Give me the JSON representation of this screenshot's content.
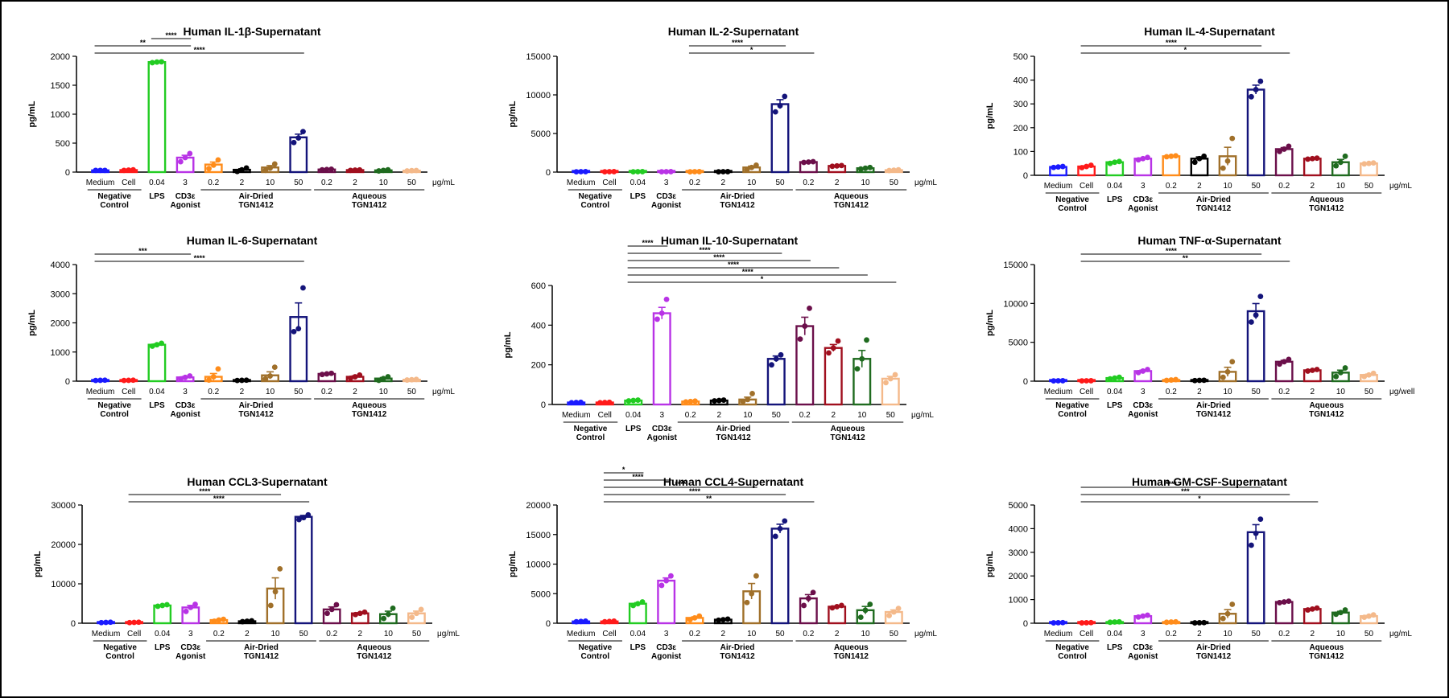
{
  "chart_data": [
    {
      "type": "bar",
      "title": "Human IL-1β-Supernatant",
      "ylabel": "pg/mL",
      "unit": "μg/mL",
      "ylim": [
        0,
        2000
      ],
      "yticks": [
        0,
        500,
        1000,
        1500,
        2000
      ],
      "yticklabels": [
        "0",
        "500",
        "1000",
        "1500",
        "2000"
      ],
      "values": [
        30,
        35,
        1900,
        250,
        130,
        40,
        80,
        600,
        45,
        35,
        30,
        25
      ],
      "points": [
        [
          30,
          30,
          30
        ],
        [
          30,
          35,
          40
        ],
        [
          1890,
          1900,
          1905
        ],
        [
          180,
          250,
          320
        ],
        [
          60,
          120,
          210
        ],
        [
          10,
          40,
          70
        ],
        [
          30,
          70,
          140
        ],
        [
          510,
          590,
          700
        ],
        [
          40,
          45,
          50
        ],
        [
          30,
          35,
          38
        ],
        [
          20,
          30,
          40
        ],
        [
          20,
          25,
          28
        ]
      ],
      "sig": [
        {
          "a": 2,
          "b": 3,
          "label": "****"
        },
        {
          "a": 0,
          "b": 3,
          "label": "**"
        },
        {
          "a": 0,
          "b": 7,
          "label": "****"
        }
      ]
    },
    {
      "type": "bar",
      "title": "Human IL-2-Supernatant",
      "ylabel": "pg/mL",
      "unit": "μg/mL",
      "ylim": [
        0,
        15000
      ],
      "yticks": [
        0,
        5000,
        10000,
        15000
      ],
      "yticklabels": [
        "0",
        "5000",
        "10000",
        "15000"
      ],
      "values": [
        50,
        50,
        50,
        50,
        50,
        50,
        600,
        8800,
        1300,
        800,
        500,
        250
      ],
      "points": [
        [
          40,
          50,
          60
        ],
        [
          40,
          50,
          60
        ],
        [
          40,
          50,
          60
        ],
        [
          40,
          50,
          60
        ],
        [
          40,
          50,
          60
        ],
        [
          40,
          50,
          60
        ],
        [
          300,
          600,
          900
        ],
        [
          7800,
          8600,
          9800
        ],
        [
          1250,
          1300,
          1350
        ],
        [
          750,
          800,
          850
        ],
        [
          400,
          500,
          600
        ],
        [
          200,
          250,
          300
        ]
      ],
      "sig": [
        {
          "a": 4,
          "b": 7,
          "label": "****"
        },
        {
          "a": 4,
          "b": 8,
          "label": "*"
        }
      ]
    },
    {
      "type": "bar",
      "title": "Human IL-4-Supernatant",
      "ylabel": "pg/mL",
      "unit": "μg/mL",
      "ylim": [
        0,
        500
      ],
      "yticks": [
        0,
        100,
        200,
        300,
        400,
        500
      ],
      "yticklabels": [
        "0",
        "100",
        "200",
        "300",
        "400",
        "500"
      ],
      "values": [
        35,
        37,
        55,
        70,
        80,
        70,
        80,
        360,
        110,
        70,
        55,
        50
      ],
      "points": [
        [
          33,
          35,
          37
        ],
        [
          32,
          37,
          42
        ],
        [
          50,
          55,
          58
        ],
        [
          65,
          70,
          75
        ],
        [
          78,
          80,
          82
        ],
        [
          55,
          70,
          80
        ],
        [
          30,
          60,
          155
        ],
        [
          330,
          360,
          395
        ],
        [
          100,
          110,
          122
        ],
        [
          68,
          70,
          72
        ],
        [
          40,
          55,
          80
        ],
        [
          48,
          50,
          52
        ]
      ],
      "sig": [
        {
          "a": 1,
          "b": 7,
          "label": "****"
        },
        {
          "a": 1,
          "b": 8,
          "label": "*"
        }
      ]
    },
    {
      "type": "bar",
      "title": "Human IL-6-Supernatant",
      "ylabel": "pg/mL",
      "unit": "μg/mL",
      "ylim": [
        0,
        4000
      ],
      "yticks": [
        0,
        1000,
        2000,
        3000,
        4000
      ],
      "yticklabels": [
        "0",
        "1000",
        "2000",
        "3000",
        "4000"
      ],
      "values": [
        30,
        30,
        1250,
        130,
        150,
        30,
        200,
        2200,
        250,
        150,
        90,
        50
      ],
      "points": [
        [
          25,
          30,
          35
        ],
        [
          25,
          30,
          35
        ],
        [
          1200,
          1250,
          1300
        ],
        [
          80,
          130,
          180
        ],
        [
          40,
          150,
          420
        ],
        [
          25,
          30,
          35
        ],
        [
          80,
          180,
          480
        ],
        [
          1700,
          1800,
          3200
        ],
        [
          230,
          250,
          270
        ],
        [
          100,
          150,
          210
        ],
        [
          30,
          90,
          150
        ],
        [
          40,
          50,
          60
        ]
      ],
      "sig": [
        {
          "a": 0,
          "b": 3,
          "label": "***"
        },
        {
          "a": 0,
          "b": 7,
          "label": "****"
        }
      ]
    },
    {
      "type": "bar",
      "title": "Human IL-10-Supernatant",
      "ylabel": "pg/mL",
      "unit": "μg/mL",
      "ylim": [
        0,
        600
      ],
      "yticks": [
        0,
        200,
        400,
        600
      ],
      "yticklabels": [
        "0",
        "200",
        "400",
        "600"
      ],
      "values": [
        10,
        10,
        20,
        460,
        15,
        20,
        25,
        230,
        395,
        285,
        230,
        130
      ],
      "points": [
        [
          9,
          10,
          11
        ],
        [
          9,
          10,
          11
        ],
        [
          18,
          20,
          22
        ],
        [
          430,
          460,
          530
        ],
        [
          13,
          15,
          17
        ],
        [
          18,
          20,
          22
        ],
        [
          15,
          25,
          55
        ],
        [
          200,
          230,
          250
        ],
        [
          330,
          395,
          485
        ],
        [
          260,
          285,
          320
        ],
        [
          180,
          230,
          325
        ],
        [
          110,
          130,
          150
        ]
      ],
      "sig": [
        {
          "a": 2,
          "b": 3,
          "label": "****"
        },
        {
          "a": 2,
          "b": 7,
          "label": "****"
        },
        {
          "a": 2,
          "b": 8,
          "label": "****"
        },
        {
          "a": 2,
          "b": 9,
          "label": "****"
        },
        {
          "a": 2,
          "b": 10,
          "label": "****"
        },
        {
          "a": 2,
          "b": 11,
          "label": "*"
        }
      ]
    },
    {
      "type": "bar",
      "title": "Human TNF-α-Supernatant",
      "ylabel": "pg/mL",
      "unit": "μg/well",
      "ylim": [
        0,
        15000
      ],
      "yticks": [
        0,
        5000,
        10000,
        15000
      ],
      "yticklabels": [
        "0",
        "5000",
        "10000",
        "15000"
      ],
      "values": [
        50,
        50,
        400,
        1300,
        150,
        100,
        1200,
        9000,
        2500,
        1400,
        1100,
        800
      ],
      "points": [
        [
          40,
          50,
          60
        ],
        [
          40,
          50,
          60
        ],
        [
          300,
          400,
          500
        ],
        [
          1100,
          1300,
          1500
        ],
        [
          100,
          150,
          200
        ],
        [
          80,
          100,
          120
        ],
        [
          500,
          1200,
          2500
        ],
        [
          7600,
          8500,
          10900
        ],
        [
          2200,
          2500,
          2800
        ],
        [
          1300,
          1400,
          1500
        ],
        [
          600,
          1100,
          1700
        ],
        [
          600,
          800,
          1000
        ]
      ],
      "sig": [
        {
          "a": 1,
          "b": 7,
          "label": "****"
        },
        {
          "a": 1,
          "b": 8,
          "label": "**"
        }
      ]
    },
    {
      "type": "bar",
      "title": "Human CCL3-Supernatant",
      "ylabel": "pg/mL",
      "unit": "μg/mL",
      "ylim": [
        0,
        30000
      ],
      "yticks": [
        0,
        10000,
        20000,
        30000
      ],
      "yticklabels": [
        "0",
        "10000",
        "20000",
        "30000"
      ],
      "values": [
        200,
        200,
        4500,
        4000,
        800,
        500,
        8800,
        27000,
        3500,
        2500,
        2300,
        2500
      ],
      "points": [
        [
          150,
          200,
          250
        ],
        [
          150,
          200,
          250
        ],
        [
          4300,
          4500,
          4700
        ],
        [
          3000,
          4000,
          4800
        ],
        [
          500,
          800,
          1000
        ],
        [
          400,
          500,
          600
        ],
        [
          4500,
          8000,
          13800
        ],
        [
          26300,
          26800,
          27500
        ],
        [
          2500,
          3500,
          4700
        ],
        [
          2200,
          2500,
          2800
        ],
        [
          1200,
          2300,
          3800
        ],
        [
          1500,
          2500,
          3500
        ]
      ],
      "sig": [
        {
          "a": 1,
          "b": 6,
          "label": "****"
        },
        {
          "a": 1,
          "b": 7,
          "label": "****"
        }
      ]
    },
    {
      "type": "bar",
      "title": "Human CCL4-Supernatant",
      "ylabel": "pg/mL",
      "unit": "μg/mL",
      "ylim": [
        0,
        20000
      ],
      "yticks": [
        0,
        5000,
        10000,
        15000,
        20000
      ],
      "yticklabels": [
        "0",
        "5000",
        "10000",
        "15000",
        "20000"
      ],
      "values": [
        300,
        300,
        3300,
        7200,
        900,
        600,
        5400,
        16000,
        4200,
        2800,
        2200,
        1900
      ],
      "points": [
        [
          250,
          300,
          350
        ],
        [
          250,
          300,
          350
        ],
        [
          3000,
          3300,
          3600
        ],
        [
          6400,
          7200,
          8000
        ],
        [
          600,
          900,
          1200
        ],
        [
          500,
          600,
          700
        ],
        [
          3500,
          5000,
          8000
        ],
        [
          14700,
          16000,
          17300
        ],
        [
          3000,
          4200,
          5200
        ],
        [
          2600,
          2800,
          3000
        ],
        [
          1000,
          2200,
          3200
        ],
        [
          1300,
          1900,
          2500
        ]
      ],
      "sig": [
        {
          "a": 1,
          "b": 2,
          "label": "*"
        },
        {
          "a": 1,
          "b": 3,
          "label": "****"
        },
        {
          "a": 1,
          "b": 6,
          "label": "****"
        },
        {
          "a": 1,
          "b": 7,
          "label": "****"
        },
        {
          "a": 1,
          "b": 8,
          "label": "**"
        }
      ]
    },
    {
      "type": "bar",
      "title": "Human GM-CSF-Supernatant",
      "ylabel": "pg/mL",
      "unit": "μg/mL",
      "ylim": [
        0,
        5000
      ],
      "yticks": [
        0,
        1000,
        2000,
        3000,
        4000,
        5000
      ],
      "yticklabels": [
        "0",
        "1000",
        "2000",
        "3000",
        "4000",
        "5000"
      ],
      "values": [
        20,
        20,
        50,
        300,
        50,
        20,
        400,
        3850,
        900,
        600,
        450,
        300
      ],
      "points": [
        [
          15,
          20,
          25
        ],
        [
          15,
          20,
          25
        ],
        [
          40,
          50,
          60
        ],
        [
          260,
          300,
          340
        ],
        [
          40,
          50,
          60
        ],
        [
          15,
          20,
          25
        ],
        [
          200,
          400,
          800
        ],
        [
          3300,
          3800,
          4400
        ],
        [
          870,
          900,
          930
        ],
        [
          560,
          600,
          640
        ],
        [
          380,
          450,
          560
        ],
        [
          250,
          300,
          350
        ]
      ],
      "sig": [
        {
          "a": 1,
          "b": 7,
          "label": "****"
        },
        {
          "a": 1,
          "b": 8,
          "label": "***"
        },
        {
          "a": 1,
          "b": 9,
          "label": "*"
        }
      ]
    }
  ],
  "x_categories": [
    "Medium",
    "Cell",
    "0.04",
    "3",
    "0.2",
    "2",
    "10",
    "50",
    "0.2",
    "2",
    "10",
    "50"
  ],
  "x_groups": [
    {
      "label": "Negative\nControl",
      "from": 0,
      "to": 1
    },
    {
      "label": "LPS",
      "from": 2,
      "to": 2
    },
    {
      "label": "CD3ε\nAgonist",
      "from": 3,
      "to": 3
    },
    {
      "label": "Air-Dried\nTGN1412",
      "from": 4,
      "to": 7
    },
    {
      "label": "Aqueous\nTGN1412",
      "from": 8,
      "to": 11
    }
  ],
  "series_colors": [
    "#1a1aff",
    "#ff1a1a",
    "#22cc22",
    "#b833e6",
    "#ff8c1a",
    "#000000",
    "#a0702a",
    "#14147a",
    "#6b0f4a",
    "#a00f1e",
    "#1f6b1f",
    "#f4b98a"
  ]
}
